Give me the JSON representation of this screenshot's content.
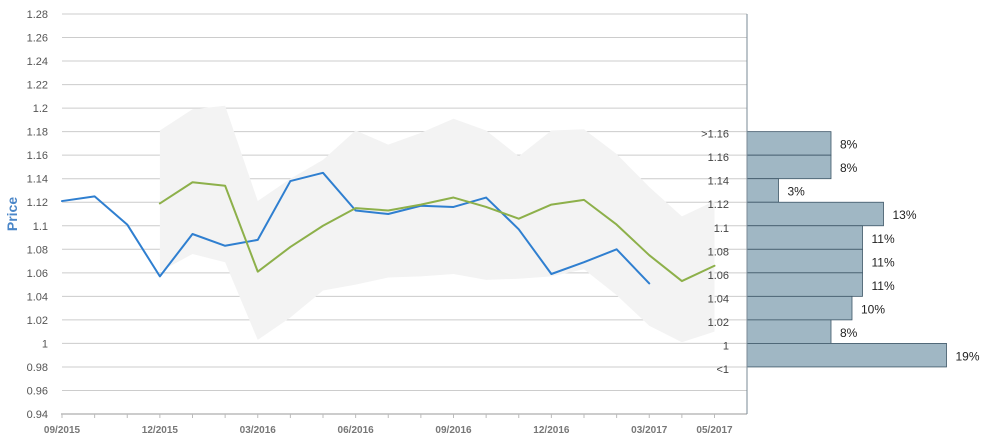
{
  "chart_data": {
    "type": "line",
    "ylabel": "Price",
    "ylim": [
      0.94,
      1.28
    ],
    "yticks": [
      "0.94",
      "0.96",
      "0.98",
      "1",
      "1.02",
      "1.04",
      "1.06",
      "1.08",
      "1.1",
      "1.12",
      "1.14",
      "1.16",
      "1.18",
      "1.2",
      "1.22",
      "1.24",
      "1.26",
      "1.28"
    ],
    "x_tick_labels": [
      "09/2015",
      "12/2015",
      "03/2016",
      "06/2016",
      "09/2016",
      "12/2016",
      "03/2017",
      "05/2017"
    ],
    "x_months": [
      "09/2015",
      "10/2015",
      "11/2015",
      "12/2015",
      "01/2016",
      "02/2016",
      "03/2016",
      "04/2016",
      "05/2016",
      "06/2016",
      "07/2016",
      "08/2016",
      "09/2016",
      "10/2016",
      "11/2016",
      "12/2016",
      "01/2017",
      "02/2017",
      "03/2017",
      "04/2017",
      "05/2017"
    ],
    "grid": true,
    "colors": {
      "actual": "#2f7fd0",
      "forecast": "#8db04a",
      "band": "#f3f3f3",
      "distribution": "#a0b7c4",
      "distribution_border": "#3d5566",
      "grid": "#cccccc",
      "axis_label": "#4a86c8"
    },
    "series": [
      {
        "key": "actual",
        "values": [
          1.121,
          1.125,
          1.101,
          1.057,
          1.093,
          1.083,
          1.088,
          1.138,
          1.145,
          1.113,
          1.11,
          1.117,
          1.116,
          1.124,
          1.097,
          1.059,
          1.069,
          1.08,
          1.051,
          null,
          null
        ]
      },
      {
        "key": "forecast",
        "values": [
          null,
          null,
          null,
          1.119,
          1.137,
          1.134,
          1.061,
          1.082,
          1.1,
          1.115,
          1.113,
          1.118,
          1.124,
          1.116,
          1.106,
          1.118,
          1.122,
          1.101,
          1.075,
          1.053,
          1.066
        ]
      }
    ],
    "band": {
      "upper": [
        null,
        null,
        null,
        1.181,
        1.199,
        1.202,
        1.121,
        1.14,
        1.156,
        1.181,
        1.169,
        1.179,
        1.191,
        1.181,
        1.159,
        1.181,
        1.182,
        1.161,
        1.133,
        1.108,
        1.121
      ],
      "lower": [
        null,
        null,
        null,
        1.061,
        1.076,
        1.069,
        1.003,
        1.022,
        1.045,
        1.05,
        1.056,
        1.057,
        1.059,
        1.054,
        1.055,
        1.057,
        1.063,
        1.041,
        1.015,
        1.001,
        1.01
      ]
    },
    "distribution": {
      "bins": [
        {
          "label": ">1.16",
          "low": 1.16,
          "high": 1.18,
          "percent": "8%",
          "value": 8
        },
        {
          "label": "1.16",
          "low": 1.14,
          "high": 1.16,
          "percent": "8%",
          "value": 8
        },
        {
          "label": "1.14",
          "low": 1.12,
          "high": 1.14,
          "percent": "3%",
          "value": 3
        },
        {
          "label": "1.12",
          "low": 1.1,
          "high": 1.12,
          "percent": "13%",
          "value": 13
        },
        {
          "label": "1.1",
          "low": 1.08,
          "high": 1.1,
          "percent": "11%",
          "value": 11
        },
        {
          "label": "1.08",
          "low": 1.06,
          "high": 1.08,
          "percent": "11%",
          "value": 11
        },
        {
          "label": "1.06",
          "low": 1.04,
          "high": 1.06,
          "percent": "11%",
          "value": 11
        },
        {
          "label": "1.04",
          "low": 1.02,
          "high": 1.04,
          "percent": "10%",
          "value": 10
        },
        {
          "label": "1.02",
          "low": 1.0,
          "high": 1.02,
          "percent": "8%",
          "value": 8
        },
        {
          "label": "1",
          "low": 0.98,
          "high": 1.0,
          "percent": "19%",
          "value": 19
        },
        {
          "label": "<1",
          "low": 0.96,
          "high": 0.98,
          "percent": "",
          "value": 0
        }
      ]
    }
  }
}
